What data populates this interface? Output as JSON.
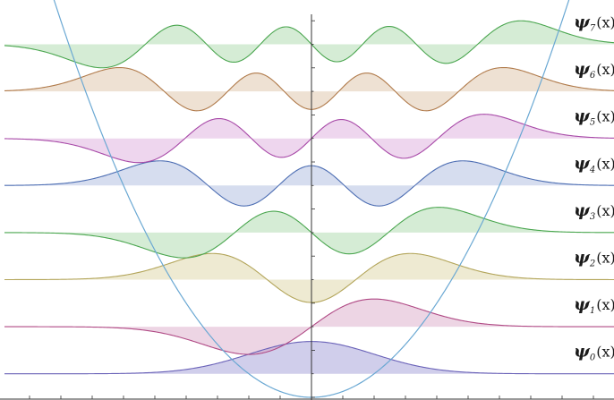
{
  "chart_data": {
    "type": "line",
    "title": "",
    "xlabel": "",
    "ylabel": "",
    "grid": false,
    "legend": "none",
    "xlim": [
      -4.9,
      4.9
    ],
    "potential": {
      "name": "V(x) = x²/2",
      "color": "#6aa8d3"
    },
    "series": [
      {
        "name": "ψ0(x)",
        "label_main": "ψ",
        "label_sub": "0",
        "label_tail": "(x)",
        "n": 0,
        "level": 0.5,
        "color": "#6a62b8",
        "fill": "#8f8ad0"
      },
      {
        "name": "ψ1(x)",
        "label_main": "ψ",
        "label_sub": "1",
        "label_tail": "(x)",
        "n": 1,
        "level": 1.5,
        "color": "#b04a85",
        "fill": "#d59cbf"
      },
      {
        "name": "ψ2(x)",
        "label_main": "ψ",
        "label_sub": "2",
        "label_tail": "(x)",
        "n": 2,
        "level": 2.5,
        "color": "#b3a55a",
        "fill": "#d7cc94"
      },
      {
        "name": "ψ3(x)",
        "label_main": "ψ",
        "label_sub": "3",
        "label_tail": "(x)",
        "n": 3,
        "level": 3.5,
        "color": "#4aa64f",
        "fill": "#9bd19c"
      },
      {
        "name": "ψ4(x)",
        "label_main": "ψ",
        "label_sub": "4",
        "label_tail": "(x)",
        "n": 4,
        "level": 4.5,
        "color": "#4d6eb3",
        "fill": "#9eafd8"
      },
      {
        "name": "ψ5(x)",
        "label_main": "ψ",
        "label_sub": "5",
        "label_tail": "(x)",
        "n": 5,
        "level": 5.5,
        "color": "#a84aa8",
        "fill": "#d79ed7"
      },
      {
        "name": "ψ6(x)",
        "label_main": "ψ",
        "label_sub": "6",
        "label_tail": "(x)",
        "n": 6,
        "level": 6.5,
        "color": "#b07a4a",
        "fill": "#d7b895"
      },
      {
        "name": "ψ7(x)",
        "label_main": "ψ",
        "label_sub": "7",
        "label_tail": "(x)",
        "n": 7,
        "level": 7.5,
        "color": "#4aa64f",
        "fill": "#9bd19c"
      }
    ]
  }
}
